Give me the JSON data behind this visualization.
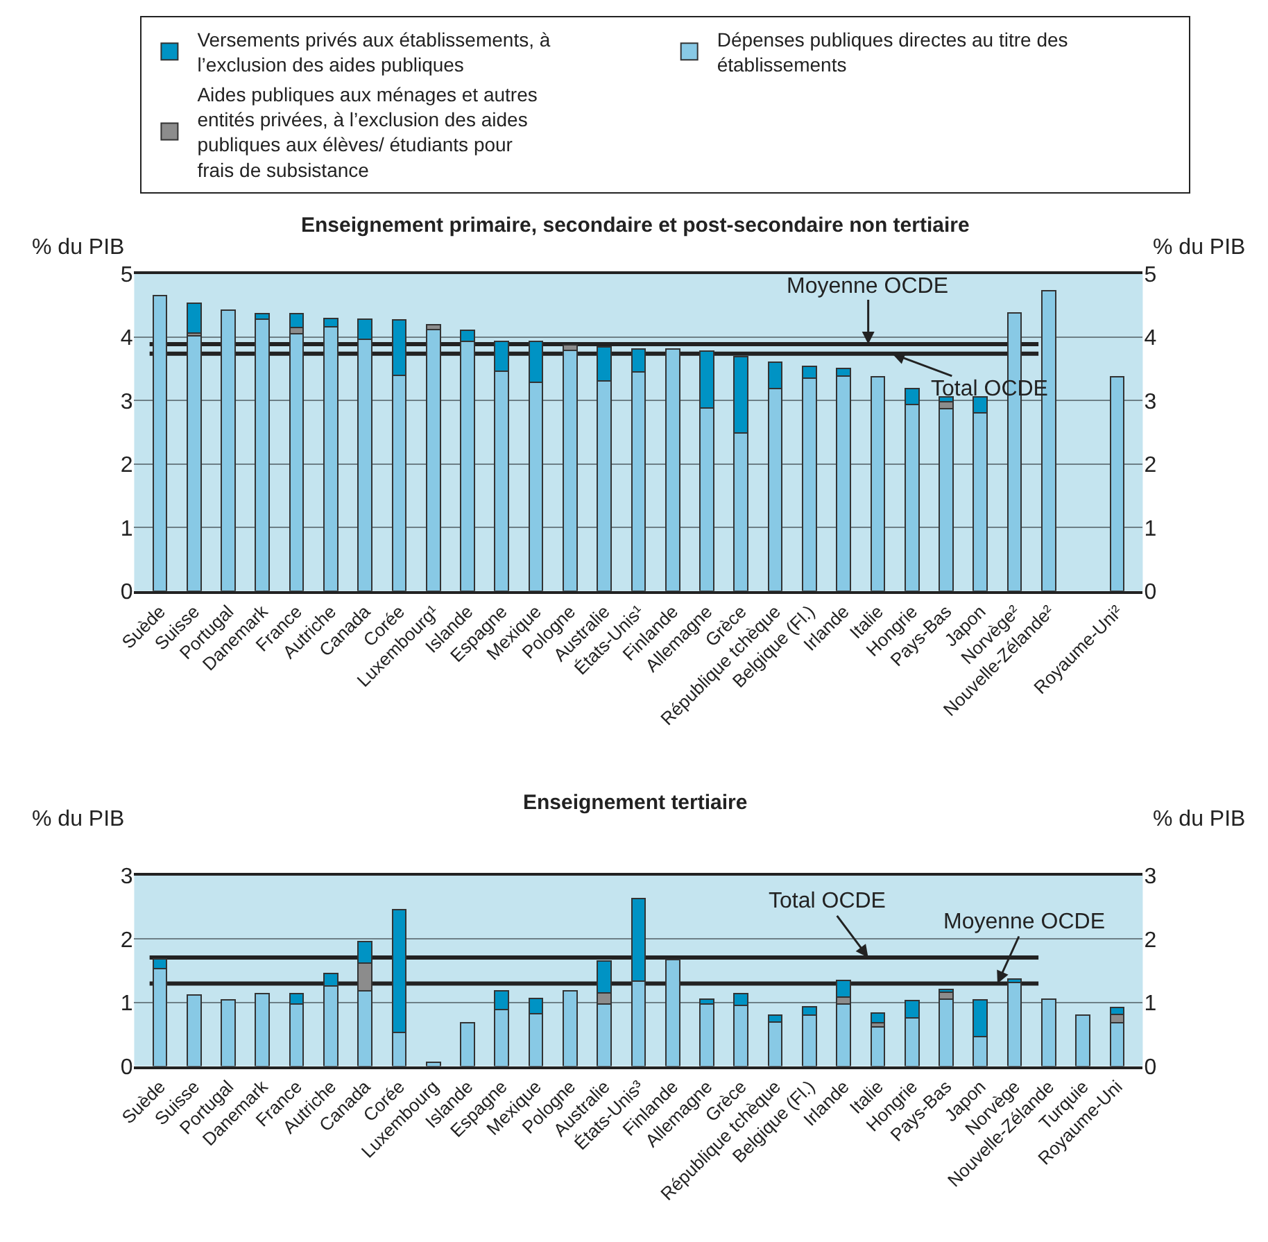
{
  "chart_data": [
    {
      "type": "bar",
      "stacked": true,
      "title": "Enseignement primaire, secondaire et post-secondaire non tertiaire",
      "ylabel": "% du PIB",
      "y2label": "% du PIB",
      "legend": "top",
      "grid": "y",
      "categories": [
        "Suède",
        "Suisse",
        "Portugal",
        "Danemark",
        "France",
        "Autriche",
        "Canada",
        "Corée",
        "Luxembourg¹",
        "Islande",
        "Espagne",
        "Mexique",
        "Pologne",
        "Australie",
        "États-Unis¹",
        "Finlande",
        "Allemagne",
        "Grèce",
        "République tchèque",
        "Belgique (Fl.)",
        "Irlande",
        "Italie",
        "Hongrie",
        "Pays-Bas",
        "Japon",
        "Norvège²",
        "Nouvelle-Zélande²",
        null,
        "Royaume-Uni²"
      ],
      "series": [
        {
          "name": "Dépenses publiques directes au titre des établissements",
          "color": "#88c9e5",
          "values": [
            4.66,
            4.02,
            4.43,
            4.29,
            4.06,
            4.17,
            3.97,
            3.4,
            4.12,
            3.93,
            3.47,
            3.29,
            3.79,
            3.31,
            3.45,
            3.81,
            2.88,
            2.49,
            3.19,
            3.35,
            3.39,
            3.38,
            2.94,
            2.87,
            2.81,
            4.38,
            4.73,
            null,
            3.38
          ]
        },
        {
          "name": "Aides publiques aux ménages et autres entités privées, à l’exclusion des aides publiques aux élèves/ étudiants pour frais de subsistance",
          "color": "#8c8c8c",
          "values": [
            null,
            0.05,
            null,
            null,
            0.09,
            null,
            null,
            null,
            0.08,
            null,
            null,
            null,
            0.09,
            null,
            null,
            null,
            null,
            null,
            null,
            null,
            null,
            null,
            null,
            0.11,
            null,
            null,
            null,
            null,
            null
          ]
        },
        {
          "name": "Versements privés aux établissements, à l’exclusion des aides publiques",
          "color": "#0093c4",
          "values": [
            null,
            0.47,
            null,
            0.08,
            0.22,
            0.13,
            0.32,
            0.87,
            null,
            0.18,
            0.46,
            0.64,
            null,
            0.54,
            0.36,
            null,
            0.9,
            1.2,
            0.42,
            0.19,
            0.12,
            null,
            0.25,
            0.08,
            0.25,
            null,
            null,
            null,
            null
          ]
        }
      ],
      "ylim": [
        0,
        5
      ],
      "yticks": [
        0,
        1,
        2,
        3,
        4,
        5
      ],
      "y2lim": [
        0,
        5
      ],
      "y2ticks": [
        0,
        1,
        2,
        3,
        4,
        5
      ],
      "ref_lines": [
        {
          "axis": "y",
          "value": 3.89,
          "label": "Moyenne OCDE",
          "color": "#222222"
        },
        {
          "axis": "y",
          "value": 3.74,
          "label": "Total OCDE",
          "color": "#222222"
        }
      ]
    },
    {
      "type": "bar",
      "stacked": true,
      "title": "Enseignement tertiaire",
      "ylabel": "% du PIB",
      "y2label": "% du PIB",
      "grid": "y",
      "categories": [
        "Suède",
        "Suisse",
        "Portugal",
        "Danemark",
        "France",
        "Autriche",
        "Canada",
        "Corée",
        "Luxembourg",
        "Islande",
        "Espagne",
        "Mexique",
        "Pologne",
        "Australie",
        "États-Unis³",
        "Finlande",
        "Allemagne",
        "Grèce",
        "République tchèque",
        "Belgique (Fl.)",
        "Irlande",
        "Italie",
        "Hongrie",
        "Pays-Bas",
        "Japon",
        "Norvège",
        "Nouvelle-Zélande",
        "Turquie",
        "Royaume-Uni"
      ],
      "series": [
        {
          "color": "#88c9e5",
          "values": [
            1.54,
            1.12,
            1.04,
            1.14,
            0.98,
            1.26,
            1.18,
            0.53,
            0.06,
            0.68,
            0.89,
            0.82,
            1.18,
            0.98,
            1.34,
            1.68,
            0.98,
            0.96,
            0.69,
            0.8,
            0.98,
            0.62,
            0.76,
            1.05,
            0.46,
            1.32,
            1.05,
            0.8,
            0.68
          ]
        },
        {
          "color": "#8c8c8c",
          "values": [
            null,
            null,
            null,
            null,
            null,
            null,
            0.44,
            null,
            null,
            null,
            null,
            null,
            null,
            0.17,
            null,
            null,
            null,
            null,
            null,
            null,
            0.11,
            0.06,
            null,
            0.11,
            null,
            null,
            null,
            null,
            0.13
          ]
        },
        {
          "color": "#0093c4",
          "values": [
            0.15,
            null,
            null,
            null,
            0.16,
            0.2,
            0.34,
            1.93,
            null,
            null,
            0.29,
            0.24,
            null,
            0.51,
            1.3,
            null,
            0.07,
            0.18,
            0.11,
            0.13,
            0.26,
            0.16,
            0.27,
            0.05,
            0.58,
            0.05,
            null,
            null,
            0.11
          ]
        }
      ],
      "ylim": [
        0,
        3
      ],
      "yticks": [
        0,
        1,
        2,
        3
      ],
      "y2lim": [
        0,
        3
      ],
      "y2ticks": [
        0,
        1,
        2,
        3
      ],
      "ref_lines": [
        {
          "axis": "y",
          "value": 1.71,
          "label": "Total OCDE",
          "color": "#222222"
        },
        {
          "axis": "y",
          "value": 1.3,
          "label": "Moyenne OCDE",
          "color": "#222222"
        }
      ]
    }
  ]
}
